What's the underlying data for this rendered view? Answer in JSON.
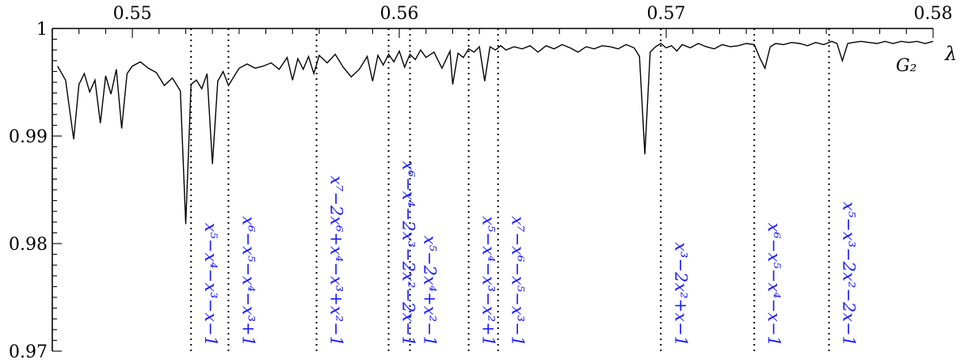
{
  "chart_data": {
    "type": "line",
    "xlabel": "λ",
    "ylabel": "",
    "xlim": [
      0.547,
      0.58
    ],
    "ylim": [
      0.97,
      1.0
    ],
    "xticks": [
      "0.55",
      "0.56",
      "0.57",
      "0.58"
    ],
    "yticks": [
      "1",
      "0.99",
      "0.98",
      "0.97"
    ],
    "series": [
      {
        "name": "G₂",
        "x": [
          0.5472,
          0.5475,
          0.5478,
          0.548,
          0.5482,
          0.5484,
          0.5486,
          0.5488,
          0.549,
          0.5492,
          0.5494,
          0.5496,
          0.5498,
          0.55,
          0.5503,
          0.5506,
          0.5509,
          0.5512,
          0.5515,
          0.5518,
          0.552,
          0.5522,
          0.5524,
          0.5526,
          0.5528,
          0.553,
          0.5532,
          0.5534,
          0.5536,
          0.5538,
          0.554,
          0.5543,
          0.5546,
          0.5549,
          0.5552,
          0.5555,
          0.5558,
          0.556,
          0.5562,
          0.5564,
          0.5566,
          0.5568,
          0.557,
          0.5573,
          0.5576,
          0.5579,
          0.5582,
          0.5585,
          0.5588,
          0.559,
          0.5592,
          0.5594,
          0.5596,
          0.5598,
          0.56,
          0.5602,
          0.5604,
          0.5606,
          0.5608,
          0.561,
          0.5613,
          0.5616,
          0.5619,
          0.562,
          0.5622,
          0.5624,
          0.5626,
          0.5628,
          0.563,
          0.5632,
          0.5634,
          0.5636,
          0.5638,
          0.564,
          0.5643,
          0.5646,
          0.5649,
          0.5652,
          0.5655,
          0.5658,
          0.5661,
          0.5664,
          0.5667,
          0.567,
          0.5673,
          0.5676,
          0.5679,
          0.5682,
          0.5685,
          0.5688,
          0.569,
          0.5692,
          0.5694,
          0.5696,
          0.5698,
          0.57,
          0.5702,
          0.5704,
          0.5706,
          0.5709,
          0.5712,
          0.5715,
          0.5718,
          0.5721,
          0.5724,
          0.5727,
          0.573,
          0.5733,
          0.5735,
          0.5737,
          0.5739,
          0.5741,
          0.5744,
          0.5747,
          0.575,
          0.5753,
          0.5756,
          0.5759,
          0.5762,
          0.5764,
          0.5766,
          0.5768,
          0.577,
          0.5773,
          0.5776,
          0.5779,
          0.5782,
          0.5785,
          0.5788,
          0.5791,
          0.5794,
          0.5797,
          0.58
        ],
        "y": [
          0.9965,
          0.9952,
          0.9897,
          0.9948,
          0.9958,
          0.9941,
          0.9952,
          0.9912,
          0.9956,
          0.9939,
          0.9962,
          0.9907,
          0.9958,
          0.9965,
          0.9969,
          0.9963,
          0.9959,
          0.9947,
          0.9954,
          0.9942,
          0.9818,
          0.9948,
          0.9952,
          0.9944,
          0.9958,
          0.9874,
          0.9951,
          0.996,
          0.9947,
          0.9955,
          0.9963,
          0.9967,
          0.9963,
          0.9965,
          0.9968,
          0.9962,
          0.9973,
          0.9952,
          0.9972,
          0.9962,
          0.9974,
          0.9958,
          0.9975,
          0.9968,
          0.9976,
          0.9964,
          0.9955,
          0.9962,
          0.9974,
          0.9951,
          0.9975,
          0.9966,
          0.9976,
          0.9969,
          0.9979,
          0.9964,
          0.9976,
          0.9971,
          0.998,
          0.9973,
          0.9978,
          0.9963,
          0.9979,
          0.9948,
          0.9977,
          0.9973,
          0.9981,
          0.9978,
          0.9983,
          0.9951,
          0.9983,
          0.998,
          0.9984,
          0.998,
          0.9983,
          0.9981,
          0.9984,
          0.9978,
          0.9984,
          0.9981,
          0.9985,
          0.9982,
          0.9978,
          0.9983,
          0.9981,
          0.9984,
          0.9983,
          0.9981,
          0.9985,
          0.9982,
          0.9974,
          0.9883,
          0.9978,
          0.9983,
          0.9986,
          0.9982,
          0.9984,
          0.9979,
          0.9985,
          0.9982,
          0.9986,
          0.9983,
          0.9981,
          0.9985,
          0.9983,
          0.9984,
          0.9986,
          0.9985,
          0.9973,
          0.9963,
          0.9983,
          0.9986,
          0.9985,
          0.9987,
          0.9986,
          0.9984,
          0.9987,
          0.9985,
          0.9988,
          0.9986,
          0.997,
          0.9986,
          0.9987,
          0.9988,
          0.9987,
          0.9986,
          0.9988,
          0.9986,
          0.9988,
          0.9987,
          0.9988,
          0.9986,
          0.9988
        ]
      }
    ],
    "lines": [
      {
        "x": 0.5522,
        "label": "x⁵−x⁴−x³−x−1"
      },
      {
        "x": 0.5536,
        "label": "x⁶−x⁵−x⁴−x³+1"
      },
      {
        "x": 0.5569,
        "label": "x⁷−2x⁶+x⁴−x³+x²−1"
      },
      {
        "x": 0.5596,
        "label": "x⁶−x⁴−2x³−2x²−2x−1"
      },
      {
        "x": 0.5604,
        "label": "x⁵−2x⁴+x²−1"
      },
      {
        "x": 0.5626,
        "label": "x⁵−x⁴−x³−x²+1"
      },
      {
        "x": 0.5637,
        "label": "x⁷−x⁶−x⁵−x³−1"
      },
      {
        "x": 0.5698,
        "label": "x³−2x²+x−1"
      },
      {
        "x": 0.5733,
        "label": "x⁶−x⁵−x⁴−x−1"
      },
      {
        "x": 0.5761,
        "label": "x⁵−x³−2x²−2x−1"
      }
    ]
  }
}
